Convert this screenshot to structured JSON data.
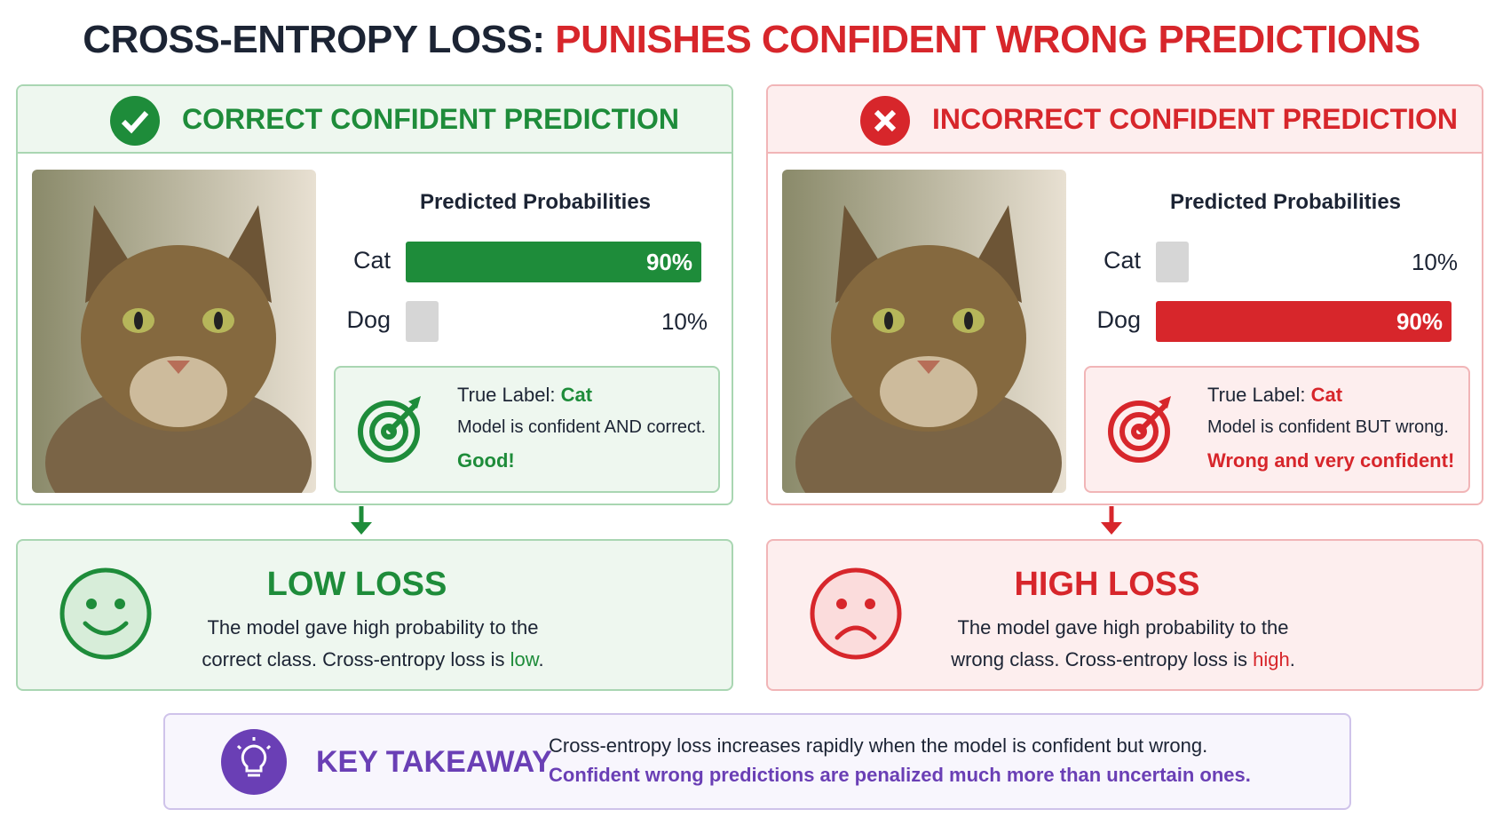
{
  "title": {
    "part1": "CROSS-ENTROPY LOSS:",
    "part2": "PUNISHES CONFIDENT WRONG PREDICTIONS"
  },
  "panels": [
    {
      "heading": "CORRECT CONFIDENT PREDICTION",
      "probabilities_title": "Predicted Probabilities",
      "probabilities": [
        {
          "class": "Cat",
          "value": 90,
          "label": "90%"
        },
        {
          "class": "Dog",
          "value": 10,
          "label": "10%"
        }
      ],
      "true_label_key": "True Label:",
      "true_label": "Cat",
      "statement": "Model is confident AND correct.",
      "verdict": "Good!",
      "loss_title": "LOW LOSS",
      "loss_text": "The model gave high probability to the correct class.  Cross-entropy loss is",
      "loss_word": "low",
      "loss_end": "."
    },
    {
      "heading": "INCORRECT CONFIDENT PREDICTION",
      "probabilities_title": "Predicted Probabilities",
      "probabilities": [
        {
          "class": "Cat",
          "value": 10,
          "label": "10%"
        },
        {
          "class": "Dog",
          "value": 90,
          "label": "90%"
        }
      ],
      "true_label_key": "True Label:",
      "true_label": "Cat",
      "statement": "Model is confident BUT wrong.",
      "verdict": "Wrong and very confident!",
      "loss_title": "HIGH LOSS",
      "loss_text": "The model gave high probability to the wrong class.  Cross-entropy loss is",
      "loss_word": "high",
      "loss_end": "."
    }
  ],
  "takeaway": {
    "title": "KEY TAKEAWAY",
    "line1": "Cross-entropy loss increases rapidly when the model is confident but wrong.",
    "line2": "Confident wrong predictions are penalized much more than uncertain ones."
  }
}
